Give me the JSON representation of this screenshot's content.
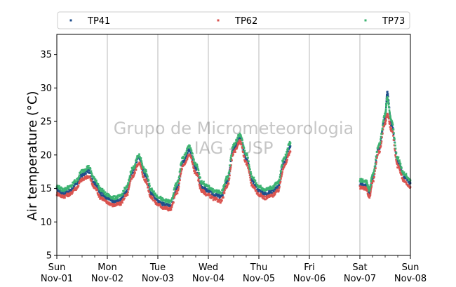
{
  "chart_data": {
    "type": "scatter",
    "title": "",
    "ylabel": "Air temperature (°C)",
    "xlabel": "",
    "ylim": [
      5,
      38
    ],
    "yticks": [
      5,
      10,
      15,
      20,
      25,
      30,
      35
    ],
    "x_range_days": [
      "2020-11-01",
      "2020-11-08"
    ],
    "x_tick_labels": [
      {
        "day": "Sun",
        "date": "Nov-01"
      },
      {
        "day": "Mon",
        "date": "Nov-02"
      },
      {
        "day": "Tue",
        "date": "Nov-03"
      },
      {
        "day": "Wed",
        "date": "Nov-04"
      },
      {
        "day": "Thu",
        "date": "Nov-05"
      },
      {
        "day": "Fri",
        "date": "Nov-06"
      },
      {
        "day": "Sat",
        "date": "Nov-07"
      },
      {
        "day": "Sun",
        "date": "Nov-08"
      }
    ],
    "grid": "vertical at major ticks",
    "legend_position": "top, outside plot",
    "watermark": [
      "Grupo de Micrometeorologia",
      "IAG - USP"
    ],
    "series": [
      {
        "name": "TP41",
        "color": "#1f4e8c",
        "points": [
          [
            "2020-11-01 00:00",
            14.8
          ],
          [
            "2020-11-01 03:00",
            14.3
          ],
          [
            "2020-11-01 06:00",
            14.6
          ],
          [
            "2020-11-01 09:00",
            15.5
          ],
          [
            "2020-11-01 12:00",
            17.0
          ],
          [
            "2020-11-01 15:00",
            17.6
          ],
          [
            "2020-11-01 18:00",
            15.8
          ],
          [
            "2020-11-01 21:00",
            14.2
          ],
          [
            "2020-11-02 00:00",
            13.5
          ],
          [
            "2020-11-02 03:00",
            13.0
          ],
          [
            "2020-11-02 06:00",
            13.2
          ],
          [
            "2020-11-02 09:00",
            14.5
          ],
          [
            "2020-11-02 12:00",
            17.5
          ],
          [
            "2020-11-02 15:00",
            19.7
          ],
          [
            "2020-11-02 18:00",
            17.0
          ],
          [
            "2020-11-02 21:00",
            14.2
          ],
          [
            "2020-11-03 00:00",
            13.2
          ],
          [
            "2020-11-03 03:00",
            12.6
          ],
          [
            "2020-11-03 06:00",
            12.3
          ],
          [
            "2020-11-03 09:00",
            15.0
          ],
          [
            "2020-11-03 12:00",
            19.0
          ],
          [
            "2020-11-03 15:00",
            20.8
          ],
          [
            "2020-11-03 18:00",
            18.0
          ],
          [
            "2020-11-03 21:00",
            15.2
          ],
          [
            "2020-11-04 00:00",
            14.6
          ],
          [
            "2020-11-04 03:00",
            14.0
          ],
          [
            "2020-11-04 06:00",
            13.8
          ],
          [
            "2020-11-04 09:00",
            16.0
          ],
          [
            "2020-11-04 12:00",
            21.0
          ],
          [
            "2020-11-04 15:00",
            22.8
          ],
          [
            "2020-11-04 18:00",
            19.5
          ],
          [
            "2020-11-04 21:00",
            16.0
          ],
          [
            "2020-11-05 00:00",
            14.7
          ],
          [
            "2020-11-05 03:00",
            14.2
          ],
          [
            "2020-11-05 06:00",
            14.5
          ],
          [
            "2020-11-05 09:00",
            15.2
          ],
          [
            "2020-11-05 12:00",
            19.0
          ],
          [
            "2020-11-05 15:00",
            21.3
          ]
        ]
      },
      {
        "name": "TP62",
        "color": "#d9534f",
        "points": [
          [
            "2020-11-01 00:00",
            14.2
          ],
          [
            "2020-11-01 03:00",
            13.8
          ],
          [
            "2020-11-01 06:00",
            14.1
          ],
          [
            "2020-11-01 09:00",
            15.0
          ],
          [
            "2020-11-01 12:00",
            16.3
          ],
          [
            "2020-11-01 15:00",
            16.8
          ],
          [
            "2020-11-01 18:00",
            15.1
          ],
          [
            "2020-11-01 21:00",
            13.6
          ],
          [
            "2020-11-02 00:00",
            12.9
          ],
          [
            "2020-11-02 03:00",
            12.5
          ],
          [
            "2020-11-02 06:00",
            12.7
          ],
          [
            "2020-11-02 09:00",
            13.9
          ],
          [
            "2020-11-02 12:00",
            16.8
          ],
          [
            "2020-11-02 15:00",
            18.8
          ],
          [
            "2020-11-02 18:00",
            16.2
          ],
          [
            "2020-11-02 21:00",
            13.6
          ],
          [
            "2020-11-03 00:00",
            12.6
          ],
          [
            "2020-11-03 03:00",
            12.1
          ],
          [
            "2020-11-03 06:00",
            11.9
          ],
          [
            "2020-11-03 09:00",
            14.4
          ],
          [
            "2020-11-03 12:00",
            18.3
          ],
          [
            "2020-11-03 15:00",
            20.0
          ],
          [
            "2020-11-03 18:00",
            17.3
          ],
          [
            "2020-11-03 21:00",
            14.6
          ],
          [
            "2020-11-04 00:00",
            14.0
          ],
          [
            "2020-11-04 03:00",
            13.4
          ],
          [
            "2020-11-04 06:00",
            13.1
          ],
          [
            "2020-11-04 09:00",
            15.4
          ],
          [
            "2020-11-04 12:00",
            20.3
          ],
          [
            "2020-11-04 15:00",
            22.0
          ],
          [
            "2020-11-04 18:00",
            18.8
          ],
          [
            "2020-11-04 21:00",
            15.4
          ],
          [
            "2020-11-05 00:00",
            14.1
          ],
          [
            "2020-11-05 03:00",
            13.6
          ],
          [
            "2020-11-05 06:00",
            13.9
          ],
          [
            "2020-11-05 09:00",
            14.6
          ],
          [
            "2020-11-05 12:00",
            18.3
          ],
          [
            "2020-11-05 15:00",
            20.5
          ]
        ]
      },
      {
        "name": "TP73",
        "color": "#3cb371",
        "points": [
          [
            "2020-11-01 00:00",
            15.3
          ],
          [
            "2020-11-01 03:00",
            14.8
          ],
          [
            "2020-11-01 06:00",
            15.2
          ],
          [
            "2020-11-01 09:00",
            16.1
          ],
          [
            "2020-11-01 12:00",
            17.6
          ],
          [
            "2020-11-01 15:00",
            18.2
          ],
          [
            "2020-11-01 18:00",
            16.4
          ],
          [
            "2020-11-01 21:00",
            14.8
          ],
          [
            "2020-11-02 00:00",
            14.0
          ],
          [
            "2020-11-02 03:00",
            13.6
          ],
          [
            "2020-11-02 06:00",
            13.8
          ],
          [
            "2020-11-02 09:00",
            15.1
          ],
          [
            "2020-11-02 12:00",
            18.0
          ],
          [
            "2020-11-02 15:00",
            19.9
          ],
          [
            "2020-11-02 18:00",
            17.6
          ],
          [
            "2020-11-02 21:00",
            14.8
          ],
          [
            "2020-11-03 00:00",
            13.8
          ],
          [
            "2020-11-03 03:00",
            13.2
          ],
          [
            "2020-11-03 06:00",
            13.0
          ],
          [
            "2020-11-03 09:00",
            15.7
          ],
          [
            "2020-11-03 12:00",
            19.6
          ],
          [
            "2020-11-03 15:00",
            21.3
          ],
          [
            "2020-11-03 18:00",
            18.6
          ],
          [
            "2020-11-03 21:00",
            15.9
          ],
          [
            "2020-11-04 00:00",
            15.2
          ],
          [
            "2020-11-04 03:00",
            14.6
          ],
          [
            "2020-11-04 06:00",
            14.4
          ],
          [
            "2020-11-04 09:00",
            16.6
          ],
          [
            "2020-11-04 12:00",
            21.5
          ],
          [
            "2020-11-04 15:00",
            23.0
          ],
          [
            "2020-11-04 18:00",
            20.1
          ],
          [
            "2020-11-04 21:00",
            16.6
          ],
          [
            "2020-11-05 00:00",
            15.3
          ],
          [
            "2020-11-05 03:00",
            14.8
          ],
          [
            "2020-11-05 06:00",
            15.1
          ],
          [
            "2020-11-05 09:00",
            15.8
          ],
          [
            "2020-11-05 12:00",
            19.6
          ],
          [
            "2020-11-05 15:00",
            21.8
          ]
        ]
      }
    ],
    "series_after_gap": [
      {
        "name": "TP41",
        "points": [
          [
            "2020-11-07 00:00",
            15.6
          ],
          [
            "2020-11-07 03:00",
            15.4
          ],
          [
            "2020-11-07 04:30",
            14.2
          ],
          [
            "2020-11-07 06:00",
            16.5
          ],
          [
            "2020-11-07 09:00",
            21.0
          ],
          [
            "2020-11-07 12:00",
            25.5
          ],
          [
            "2020-11-07 13:00",
            29.3
          ],
          [
            "2020-11-07 15:00",
            24.5
          ],
          [
            "2020-11-07 18:00",
            19.0
          ],
          [
            "2020-11-07 21:00",
            16.8
          ],
          [
            "2020-11-08 00:00",
            15.8
          ]
        ]
      },
      {
        "name": "TP62",
        "points": [
          [
            "2020-11-07 00:00",
            15.2
          ],
          [
            "2020-11-07 03:00",
            15.0
          ],
          [
            "2020-11-07 04:30",
            13.7
          ],
          [
            "2020-11-07 06:00",
            16.0
          ],
          [
            "2020-11-07 09:00",
            20.4
          ],
          [
            "2020-11-07 12:00",
            24.8
          ],
          [
            "2020-11-07 13:00",
            26.0
          ],
          [
            "2020-11-07 15:00",
            23.8
          ],
          [
            "2020-11-07 18:00",
            18.3
          ],
          [
            "2020-11-07 21:00",
            16.2
          ],
          [
            "2020-11-08 00:00",
            15.2
          ]
        ]
      },
      {
        "name": "TP73",
        "points": [
          [
            "2020-11-07 00:00",
            16.2
          ],
          [
            "2020-11-07 03:00",
            16.0
          ],
          [
            "2020-11-07 04:30",
            14.8
          ],
          [
            "2020-11-07 06:00",
            17.0
          ],
          [
            "2020-11-07 09:00",
            21.5
          ],
          [
            "2020-11-07 12:00",
            26.0
          ],
          [
            "2020-11-07 13:00",
            28.5
          ],
          [
            "2020-11-07 15:00",
            25.0
          ],
          [
            "2020-11-07 18:00",
            19.5
          ],
          [
            "2020-11-07 21:00",
            17.2
          ],
          [
            "2020-11-08 00:00",
            16.2
          ]
        ]
      }
    ]
  }
}
